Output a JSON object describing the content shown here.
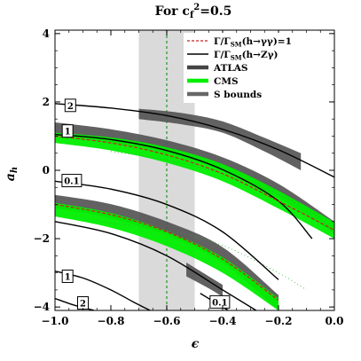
{
  "chart_data": {
    "type": "line",
    "title_prefix": "For c",
    "title_sub": "f",
    "title_sup": "2",
    "title_suffix": "=0.5",
    "xlabel": "ϵ",
    "ylabel_main": "a",
    "ylabel_sub": "h",
    "xlim": [
      -1.0,
      0.0
    ],
    "ylim": [
      -4.1,
      4.1
    ],
    "x_ticks": [
      {
        "v": -1.0,
        "label": "−1.0"
      },
      {
        "v": -0.8,
        "label": "−0.8"
      },
      {
        "v": -0.6,
        "label": "−0.6"
      },
      {
        "v": -0.4,
        "label": "−0.4"
      },
      {
        "v": -0.2,
        "label": "−0.2"
      },
      {
        "v": 0.0,
        "label": "0.0"
      }
    ],
    "y_ticks": [
      {
        "v": -4,
        "label": "−4"
      },
      {
        "v": -2,
        "label": "−2"
      },
      {
        "v": 0,
        "label": "0"
      },
      {
        "v": 2,
        "label": "2"
      },
      {
        "v": 4,
        "label": "4"
      }
    ],
    "legend": [
      {
        "text": "Γ/Γ",
        "sub": "SM",
        "rest": "(h→γγ)=1",
        "style": "red-dashed"
      },
      {
        "text": "Γ/Γ",
        "sub": "SM",
        "rest": "(h→Zγ)",
        "style": "black-thin"
      },
      {
        "text": "ATLAS",
        "sub": "",
        "rest": "",
        "style": "dark-gray-thick"
      },
      {
        "text": "CMS",
        "sub": "",
        "rest": "",
        "style": "green-thick"
      },
      {
        "text": "S bounds",
        "sub": "",
        "rest": "",
        "style": "gray-thick"
      }
    ],
    "colors": {
      "atlas": "#555555",
      "cms": "#00ee00",
      "gamma_gamma": "#cc2222",
      "z_gamma": "#000000",
      "s_bounds": "#bbbbbb",
      "s_bounds_center": "#229922"
    },
    "s_bounds": {
      "x_range": [
        -0.7,
        -0.5
      ],
      "center": -0.6
    },
    "atlas_bands": [
      {
        "x": [
          -1.0,
          -0.8,
          -0.6,
          -0.4,
          -0.2,
          0.0
        ],
        "lower": [
          1.0,
          0.8,
          0.5,
          -0.02,
          -0.8,
          -1.85
        ],
        "upper": [
          1.4,
          1.2,
          0.88,
          0.38,
          -0.4,
          -1.5
        ]
      },
      {
        "x": [
          -1.0,
          -0.8,
          -0.6,
          -0.4,
          -0.2
        ],
        "lower": [
          -1.1,
          -1.4,
          -1.9,
          -2.7,
          -4.1
        ],
        "upper": [
          -0.72,
          -0.99,
          -1.5,
          -2.25,
          -3.65
        ]
      },
      {
        "x": [
          -0.53,
          -0.45,
          -0.4
        ],
        "lower": [
          -3.1,
          -3.45,
          -3.7
        ],
        "upper": [
          -2.7,
          -3.1,
          -3.35
        ]
      },
      {
        "x": [
          -0.7,
          -0.55,
          -0.4,
          -0.25,
          -0.12
        ],
        "lower": [
          1.5,
          1.35,
          1.1,
          0.55,
          0.0
        ],
        "upper": [
          1.8,
          1.68,
          1.43,
          0.95,
          0.5
        ]
      }
    ],
    "cms_bands": [
      {
        "x": [
          -1.0,
          -0.8,
          -0.6,
          -0.4,
          -0.2,
          0.0
        ],
        "lower": [
          0.8,
          0.58,
          0.22,
          -0.32,
          -1.12,
          -2.0
        ],
        "upper": [
          1.1,
          0.96,
          0.67,
          0.18,
          -0.6,
          -1.52
        ]
      },
      {
        "x": [
          -1.0,
          -0.8,
          -0.6,
          -0.4,
          -0.2
        ],
        "lower": [
          -1.35,
          -1.68,
          -2.22,
          -3.0,
          -4.1
        ],
        "upper": [
          -0.95,
          -1.25,
          -1.78,
          -2.55,
          -3.75
        ]
      }
    ],
    "gamma_gamma_curves": [
      {
        "x": [
          -1.0,
          -0.8,
          -0.6,
          -0.4,
          -0.2,
          0.0
        ],
        "y": [
          1.0,
          0.8,
          0.45,
          -0.1,
          -0.9,
          -1.75
        ]
      },
      {
        "x": [
          -1.0,
          -0.8,
          -0.6,
          -0.4,
          -0.2
        ],
        "y": [
          -1.0,
          -1.3,
          -1.8,
          -2.6,
          -3.8
        ]
      }
    ],
    "z_gamma_curves": [
      {
        "label": "2",
        "label_pos": [
          -0.945,
          1.9
        ],
        "x": [
          -1.0,
          -0.8,
          -0.6,
          -0.4,
          -0.2,
          0.0
        ],
        "y": [
          1.95,
          1.82,
          1.6,
          1.2,
          0.6,
          -0.2
        ]
      },
      {
        "label": "1",
        "label_pos": [
          -0.955,
          1.15
        ],
        "x": [
          -1.0,
          -0.8,
          -0.6,
          -0.4,
          -0.2,
          -0.08
        ],
        "y": [
          1.05,
          0.9,
          0.58,
          0.02,
          -0.9,
          -2.0
        ]
      },
      {
        "label": "0.1",
        "label_pos": [
          -0.94,
          -0.3
        ],
        "x": [
          -1.0,
          -0.8,
          -0.6,
          -0.4,
          -0.2
        ],
        "y": [
          -0.32,
          -0.55,
          -1.0,
          -1.8,
          -3.2
        ]
      },
      {
        "label": "",
        "label_pos": null,
        "x": [
          -1.0,
          -0.8,
          -0.6,
          -0.4,
          -0.28
        ],
        "y": [
          -1.5,
          -1.85,
          -2.5,
          -3.5,
          -4.1
        ]
      },
      {
        "label": "1",
        "label_pos": [
          -0.955,
          -3.1
        ],
        "x": [
          -1.0,
          -0.9,
          -0.8,
          -0.72,
          -0.66
        ],
        "y": [
          -2.95,
          -3.15,
          -3.5,
          -3.85,
          -4.1
        ]
      },
      {
        "label": "2",
        "label_pos": [
          -0.9,
          -3.88
        ],
        "x": [
          -1.0,
          -0.93,
          -0.86
        ],
        "y": [
          -3.75,
          -3.95,
          -4.1
        ]
      },
      {
        "label": "0.1",
        "label_pos": [
          -0.41,
          -3.85
        ],
        "x": [
          -0.48,
          -0.43,
          -0.38
        ],
        "y": [
          -3.6,
          -3.85,
          -4.1
        ]
      }
    ],
    "green_dotted": [
      {
        "x": [
          -0.8,
          -0.6,
          -0.4,
          -0.2,
          -0.05,
          0.0
        ],
        "y": [
          0.55,
          0.3,
          -0.1,
          -0.7,
          -1.4,
          -1.9
        ]
      },
      {
        "x": [
          -0.85,
          -0.8,
          -0.6,
          -0.4,
          -0.2,
          -0.1
        ],
        "y": [
          -1.45,
          -1.55,
          -1.75,
          -2.2,
          -3.0,
          -3.5
        ]
      }
    ]
  }
}
